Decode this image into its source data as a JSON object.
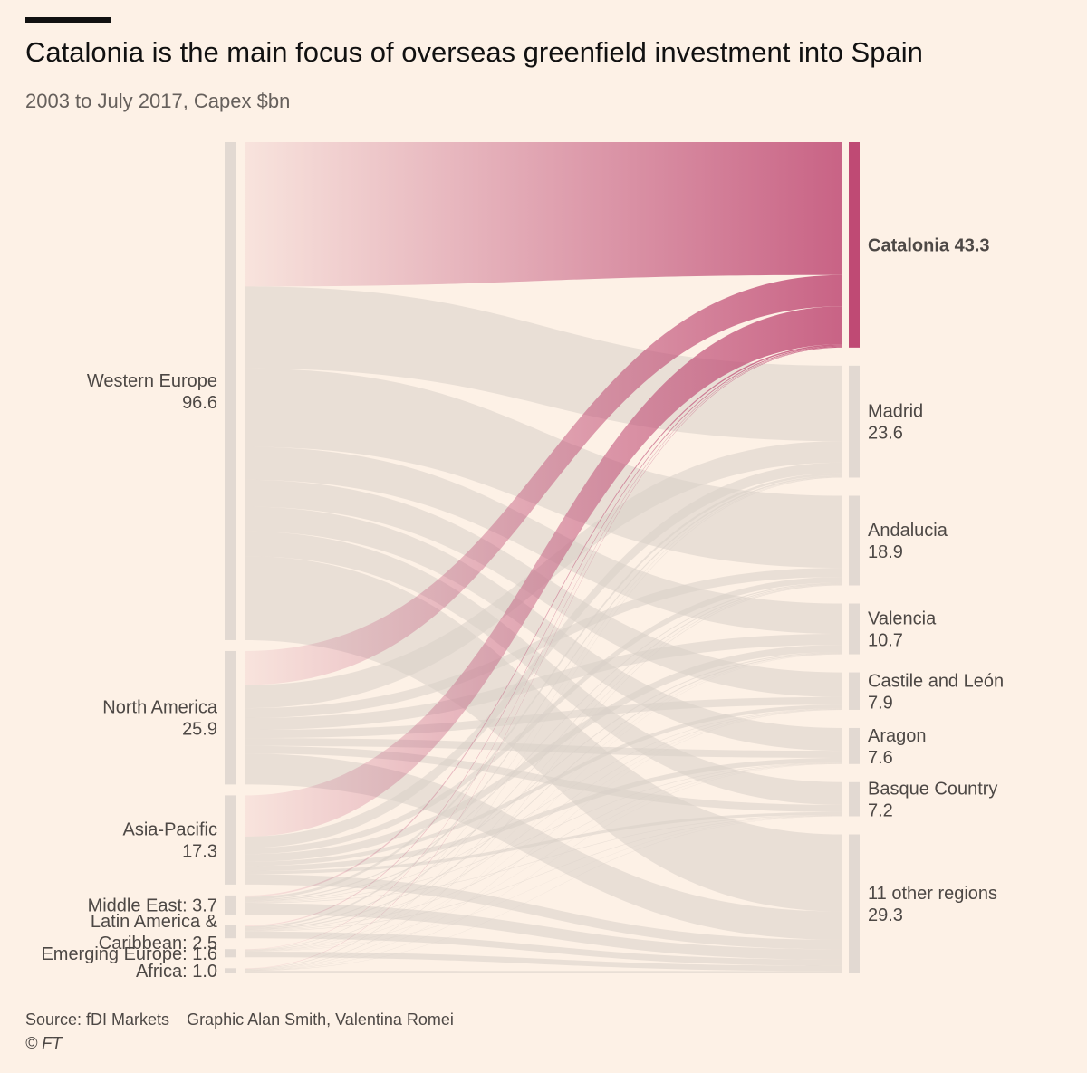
{
  "header": {
    "title": "Catalonia is the main focus of overseas greenfield investment into Spain",
    "subtitle": "2003 to July 2017, Capex $bn"
  },
  "footer": {
    "source": "Source: fDI Markets",
    "credit": "Graphic Alan Smith, Valentina Romei",
    "copyright": "© FT"
  },
  "colors": {
    "background": "#fdf1e6",
    "node": "#e2d9d2",
    "link": "#d9cfc8",
    "highlight": "#bf4a74"
  },
  "chart_data": {
    "type": "sankey",
    "title": "Catalonia is the main focus of overseas greenfield investment into Spain",
    "subtitle": "2003 to July 2017, Capex $bn",
    "sources": [
      {
        "name": "Western Europe",
        "value": 96.6,
        "label_lines": [
          "Western Europe",
          "96.6"
        ]
      },
      {
        "name": "North America",
        "value": 25.9,
        "label_lines": [
          "North America",
          "25.9"
        ]
      },
      {
        "name": "Asia-Pacific",
        "value": 17.3,
        "label_lines": [
          "Asia-Pacific",
          "17.3"
        ]
      },
      {
        "name": "Middle East",
        "value": 3.7,
        "label_lines": [
          "Middle East: 3.7"
        ]
      },
      {
        "name": "Latin America & Caribbean",
        "value": 2.5,
        "label_lines": [
          "Latin America &",
          "Caribbean: 2.5"
        ]
      },
      {
        "name": "Emerging Europe",
        "value": 1.6,
        "label_lines": [
          "Emerging Europe: 1.6"
        ]
      },
      {
        "name": "Africa",
        "value": 1.0,
        "label_lines": [
          "Africa: 1.0"
        ]
      }
    ],
    "targets": [
      {
        "name": "Catalonia",
        "value": 43.3,
        "label_lines": [
          "Catalonia 43.3"
        ],
        "highlight": true
      },
      {
        "name": "Madrid",
        "value": 23.6,
        "label_lines": [
          "Madrid",
          "23.6"
        ]
      },
      {
        "name": "Andalucia",
        "value": 18.9,
        "label_lines": [
          "Andalucia",
          "18.9"
        ]
      },
      {
        "name": "Valencia",
        "value": 10.7,
        "label_lines": [
          "Valencia",
          "10.7"
        ]
      },
      {
        "name": "Castile and León",
        "value": 7.9,
        "label_lines": [
          "Castile and León",
          "7.9"
        ]
      },
      {
        "name": "Aragon",
        "value": 7.6,
        "label_lines": [
          "Aragon",
          "7.6"
        ]
      },
      {
        "name": "Basque Country",
        "value": 7.2,
        "label_lines": [
          "Basque Country",
          "7.2"
        ]
      },
      {
        "name": "11 other regions",
        "value": 29.3,
        "label_lines": [
          "11 other regions",
          "29.3"
        ]
      }
    ],
    "flows": [
      [
        28.0,
        15.9,
        15.2,
        6.4,
        5.2,
        4.8,
        4.8,
        16.3
      ],
      [
        6.6,
        4.5,
        1.9,
        2.3,
        1.6,
        1.5,
        1.5,
        6.0
      ],
      [
        8.0,
        2.2,
        1.2,
        1.5,
        0.8,
        1.0,
        0.6,
        2.0
      ],
      [
        0.3,
        0.5,
        0.2,
        0.2,
        0.1,
        0.1,
        0.1,
        2.2
      ],
      [
        0.2,
        0.3,
        0.2,
        0.2,
        0.1,
        0.1,
        0.1,
        1.3
      ],
      [
        0.1,
        0.1,
        0.1,
        0.05,
        0.05,
        0.05,
        0.05,
        1.1
      ],
      [
        0.1,
        0.1,
        0.1,
        0.05,
        0.05,
        0.05,
        0.05,
        0.5
      ]
    ]
  }
}
